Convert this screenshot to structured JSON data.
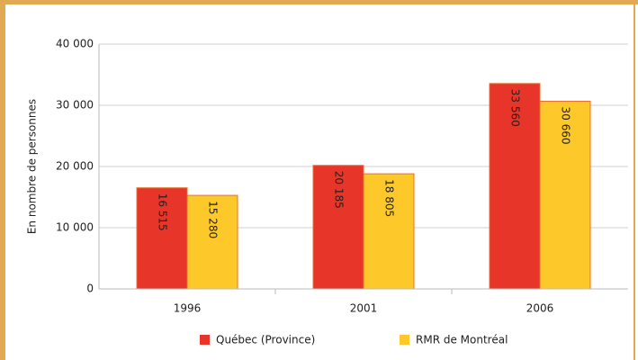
{
  "chart_data": {
    "type": "bar",
    "y_label": "En nombre de personnes",
    "categories": [
      "1996",
      "2001",
      "2006"
    ],
    "series": [
      {
        "name": "Québec (Province)",
        "color": "#e8352a",
        "values": [
          16515,
          20185,
          33560
        ],
        "value_labels": [
          "16 515",
          "20 185",
          "33 560"
        ]
      },
      {
        "name": "RMR de Montréal",
        "color": "#fcc82a",
        "values": [
          15280,
          18805,
          30660
        ],
        "value_labels": [
          "15 280",
          "18 805",
          "30 660"
        ]
      }
    ],
    "ylim": [
      0,
      40000
    ],
    "yticks": [
      {
        "value": 0,
        "label": "0"
      },
      {
        "value": 10000,
        "label": "10 000"
      },
      {
        "value": 20000,
        "label": "20 000"
      },
      {
        "value": 30000,
        "label": "30 000"
      },
      {
        "value": 40000,
        "label": "40 000"
      }
    ],
    "grid": true,
    "legend": "bottom"
  }
}
